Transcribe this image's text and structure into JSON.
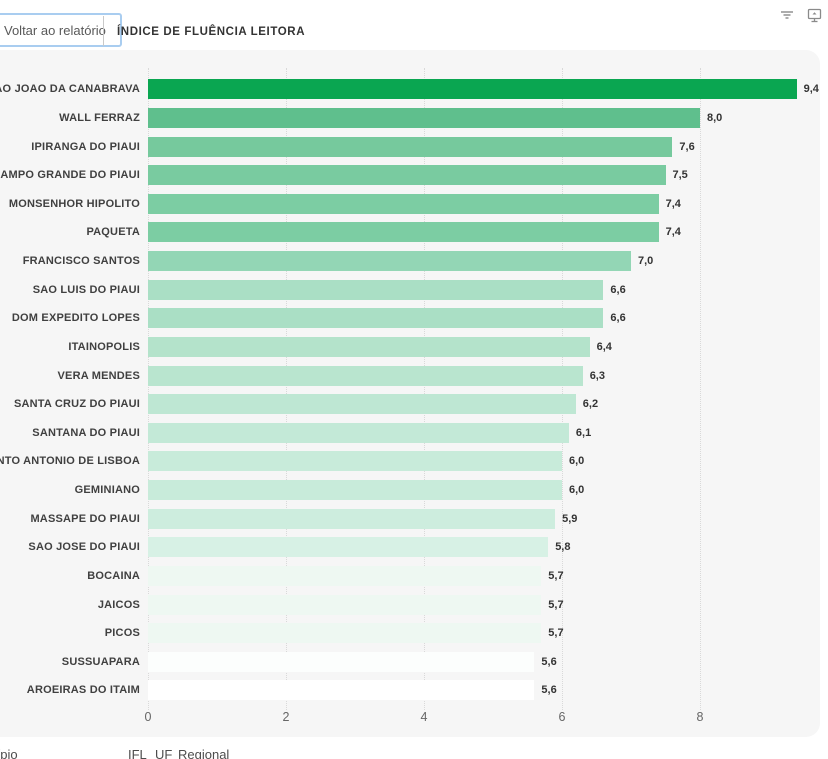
{
  "header": {
    "back_button_label": "Voltar ao relatório",
    "title": "ÍNDICE DE FLUÊNCIA LEITORA",
    "icons": [
      {
        "name": "filter-icon"
      },
      {
        "name": "popout-icon"
      }
    ]
  },
  "chart_data": {
    "type": "bar",
    "orientation": "horizontal",
    "title": "ÍNDICE DE FLUÊNCIA LEITORA",
    "categories": [
      "SAO JOAO DA CANABRAVA",
      "WALL FERRAZ",
      "IPIRANGA DO PIAUI",
      "CAMPO GRANDE DO PIAUI",
      "MONSENHOR HIPOLITO",
      "PAQUETA",
      "FRANCISCO SANTOS",
      "SAO LUIS DO PIAUI",
      "DOM EXPEDITO LOPES",
      "ITAINOPOLIS",
      "VERA MENDES",
      "SANTA CRUZ DO PIAUI",
      "SANTANA DO PIAUI",
      "SANTO ANTONIO DE LISBOA",
      "GEMINIANO",
      "MASSAPE DO PIAUI",
      "SAO JOSE DO PIAUI",
      "BOCAINA",
      "JAICOS",
      "PICOS",
      "SUSSUAPARA",
      "AROEIRAS DO ITAIM"
    ],
    "values": [
      9.4,
      8.0,
      7.6,
      7.5,
      7.4,
      7.4,
      7.0,
      6.6,
      6.6,
      6.4,
      6.3,
      6.2,
      6.1,
      6.0,
      6.0,
      5.9,
      5.8,
      5.7,
      5.7,
      5.7,
      5.6,
      5.6
    ],
    "value_labels": [
      "9,4",
      "8,0",
      "7,6",
      "7,5",
      "7,4",
      "7,4",
      "7,0",
      "6,6",
      "6,6",
      "6,4",
      "6,3",
      "6,2",
      "6,1",
      "6,0",
      "6,0",
      "5,9",
      "5,8",
      "5,7",
      "5,7",
      "5,7",
      "5,6",
      "5,6"
    ],
    "bar_colors": [
      "#0aa651",
      "#5fbf8d",
      "#76c99d",
      "#79cba0",
      "#7ccda3",
      "#7ccda3",
      "#93d6b5",
      "#aadfc5",
      "#aadfc5",
      "#b4e3cb",
      "#b9e5cf",
      "#bee7d3",
      "#c3e9d7",
      "#c8ebda",
      "#c8ebda",
      "#cdedde",
      "#d7f1e5",
      "#eef8f2",
      "#eef8f2",
      "#eef8f2",
      "#fcfefd",
      "#ffffff"
    ],
    "x_ticks": [
      0,
      2,
      4,
      6,
      8
    ],
    "x_tick_labels": [
      "0",
      "2",
      "4",
      "6",
      "8"
    ],
    "xlim": [
      0,
      9.7
    ],
    "grid": "vertical-dotted",
    "legend": "none",
    "plot_background": "#f6f6f6"
  },
  "footer": {
    "clipped_left_fragment": "Município",
    "fields": [
      "IFL",
      "UF",
      "Regional"
    ]
  },
  "colors": {
    "accent_green": "#0aa651",
    "card_background": "#f6f6f6",
    "button_border": "#a9cdf0"
  }
}
